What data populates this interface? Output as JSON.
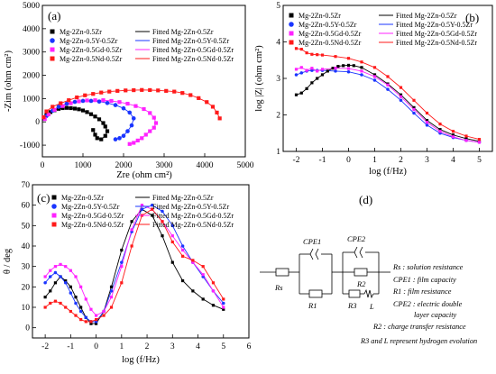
{
  "legend": {
    "series": [
      {
        "measured": "Mg-2Zn-0.5Zr",
        "fitted": "Fitted Mg-2Zn-0.5Zr",
        "color": "#000000",
        "marker": "square"
      },
      {
        "measured": "Mg-2Zn-0.5Y-0.5Zr",
        "fitted": "Fitted Mg-2Zn-0.5Y-0.5Zr",
        "color": "#1a35ff",
        "marker": "circle"
      },
      {
        "measured": "Mg-2Zn-0.5Gd-0.5Zr",
        "fitted": "Fitted Mg-2Zn-0.5Gd-0.5Zr",
        "color": "#ff22ff",
        "marker": "square"
      },
      {
        "measured": "Mg-2Zn-0.5Nd-0.5Zr",
        "fitted": "Fitted Mg-2Zn-0.5Nd-0.5Zr",
        "color": "#ff1a1a",
        "marker": "square"
      }
    ]
  },
  "chart_data": [
    {
      "panel": "(a)",
      "type": "scatter",
      "xlabel": "Zre (ohm cm²)",
      "ylabel": "-Zim (ohm cm²)",
      "xlim": [
        0,
        5000
      ],
      "ylim": [
        -1500,
        5000
      ],
      "xticks": [
        0,
        1000,
        2000,
        3000,
        4000,
        5000
      ],
      "yticks": [
        -1000,
        0,
        1000,
        2000,
        3000,
        4000,
        5000
      ],
      "series": [
        {
          "name": "Mg-2Zn-0.5Zr",
          "x": [
            40,
            100,
            200,
            300,
            400,
            500,
            600,
            700,
            800,
            900,
            1000,
            1100,
            1200,
            1300,
            1400,
            1500,
            1550,
            1600,
            1550,
            1450,
            1350,
            1300,
            1250
          ],
          "y": [
            130,
            300,
            420,
            500,
            560,
            590,
            600,
            590,
            570,
            540,
            490,
            420,
            330,
            230,
            110,
            -50,
            -200,
            -400,
            -600,
            -750,
            -700,
            -550,
            -350
          ]
        },
        {
          "name": "Mg-2Zn-0.5Y-0.5Zr",
          "x": [
            100,
            250,
            400,
            600,
            800,
            1000,
            1200,
            1400,
            1600,
            1800,
            2000,
            2150,
            2250,
            2200,
            2100,
            2000,
            1900,
            1800
          ],
          "y": [
            250,
            480,
            650,
            780,
            860,
            900,
            900,
            870,
            810,
            720,
            580,
            400,
            150,
            -150,
            -400,
            -600,
            -700,
            -750
          ]
        },
        {
          "name": "Mg-2Zn-0.5Gd-0.5Zr",
          "x": [
            60,
            150,
            300,
            500,
            700,
            900,
            1100,
            1300,
            1500,
            1700,
            1900,
            2100,
            2300,
            2500,
            2650,
            2750,
            2800,
            2750,
            2650,
            2550,
            2450,
            2350,
            2250,
            2150
          ],
          "y": [
            120,
            320,
            520,
            680,
            800,
            880,
            920,
            930,
            930,
            900,
            850,
            780,
            680,
            550,
            380,
            180,
            -50,
            -250,
            -400,
            -550,
            -700,
            -800,
            -900,
            -950
          ]
        },
        {
          "name": "Mg-2Zn-0.5Nd-0.5Zr",
          "x": [
            30,
            100,
            250,
            450,
            650,
            850,
            1050,
            1250,
            1450,
            1650,
            1850,
            2050,
            2250,
            2450,
            2650,
            2850,
            3050,
            3250,
            3450,
            3650,
            3850,
            4050,
            4200,
            4300,
            4370
          ],
          "y": [
            200,
            450,
            650,
            800,
            930,
            1050,
            1140,
            1200,
            1260,
            1300,
            1330,
            1350,
            1360,
            1370,
            1365,
            1350,
            1330,
            1300,
            1240,
            1150,
            1020,
            850,
            650,
            400,
            150
          ]
        }
      ]
    },
    {
      "panel": "(b)",
      "type": "scatter",
      "xlabel": "log (f/Hz)",
      "ylabel": "log |Z| (ohm cm²)",
      "xlim": [
        -2.5,
        5.5
      ],
      "ylim": [
        1,
        5
      ],
      "xticks": [
        -2,
        -1,
        0,
        1,
        2,
        3,
        4,
        5
      ],
      "yticks": [
        1,
        2,
        3,
        4,
        5
      ],
      "series": [
        {
          "name": "Mg-2Zn-0.5Zr",
          "x": [
            -2,
            -1.8,
            -1.6,
            -1.4,
            -1.2,
            -1,
            -0.8,
            -0.6,
            -0.4,
            -0.2,
            0,
            0.2,
            0.5,
            1,
            1.5,
            2,
            2.5,
            3,
            3.5,
            4,
            4.5,
            5
          ],
          "y": [
            2.55,
            2.6,
            2.72,
            2.88,
            3.0,
            3.1,
            3.2,
            3.28,
            3.33,
            3.35,
            3.36,
            3.35,
            3.3,
            3.1,
            2.85,
            2.55,
            2.2,
            1.85,
            1.6,
            1.45,
            1.35,
            1.28
          ]
        },
        {
          "name": "Mg-2Zn-0.5Y-0.5Zr",
          "x": [
            -2,
            -1.8,
            -1.6,
            -1.4,
            -1.2,
            -1,
            -0.5,
            0,
            0.5,
            1,
            1.5,
            2,
            2.5,
            3,
            3.5,
            4,
            4.5,
            5
          ],
          "y": [
            3.1,
            3.15,
            3.2,
            3.22,
            3.22,
            3.22,
            3.2,
            3.18,
            3.1,
            2.95,
            2.7,
            2.4,
            2.05,
            1.72,
            1.5,
            1.38,
            1.3,
            1.25
          ]
        },
        {
          "name": "Mg-2Zn-0.5Gd-0.5Zr",
          "x": [
            -2,
            -1.8,
            -1.6,
            -1.4,
            -1.2,
            -1,
            -0.5,
            0,
            0.5,
            1,
            1.5,
            2,
            2.5,
            3,
            3.5,
            4,
            4.5,
            5
          ],
          "y": [
            3.25,
            3.3,
            3.22,
            3.28,
            3.2,
            3.25,
            3.28,
            3.27,
            3.2,
            3.05,
            2.82,
            2.5,
            2.15,
            1.8,
            1.55,
            1.4,
            1.3,
            1.25
          ]
        },
        {
          "name": "Mg-2Zn-0.5Nd-0.5Zr",
          "x": [
            -2,
            -1.8,
            -1.6,
            -1.4,
            -1.2,
            -1,
            -0.5,
            0,
            0.5,
            1,
            1.5,
            2,
            2.5,
            3,
            3.5,
            4,
            4.5,
            5
          ],
          "y": [
            3.82,
            3.8,
            3.7,
            3.66,
            3.65,
            3.64,
            3.6,
            3.55,
            3.45,
            3.3,
            3.05,
            2.75,
            2.4,
            2.05,
            1.75,
            1.55,
            1.42,
            1.33
          ]
        }
      ]
    },
    {
      "panel": "(c)",
      "type": "scatter",
      "xlabel": "log (f/Hz)",
      "ylabel": "θ / deg",
      "xlim": [
        -2.5,
        6
      ],
      "ylim": [
        -5,
        70
      ],
      "xticks": [
        -2,
        -1,
        0,
        1,
        2,
        3,
        4,
        5,
        6
      ],
      "yticks": [
        0,
        10,
        20,
        30,
        40,
        50,
        60,
        70
      ],
      "series": [
        {
          "name": "Mg-2Zn-0.5Zr",
          "x": [
            -2,
            -1.8,
            -1.6,
            -1.4,
            -1.2,
            -1,
            -0.8,
            -0.6,
            -0.4,
            -0.2,
            0,
            0.3,
            0.6,
            1,
            1.4,
            1.8,
            2.2,
            2.6,
            3,
            3.4,
            3.8,
            4.2,
            4.6,
            5
          ],
          "y": [
            15,
            18,
            22,
            25,
            23,
            20,
            15,
            10,
            5,
            2,
            2,
            8,
            20,
            38,
            52,
            58,
            55,
            45,
            32,
            23,
            18,
            14,
            11,
            9
          ]
        },
        {
          "name": "Mg-2Zn-0.5Y-0.5Zr",
          "x": [
            -2,
            -1.8,
            -1.6,
            -1.4,
            -1.2,
            -1,
            -0.8,
            -0.6,
            -0.4,
            -0.2,
            0,
            0.3,
            0.6,
            1,
            1.4,
            1.8,
            2.2,
            2.6,
            3,
            3.4,
            3.8,
            4.2,
            4.6,
            5
          ],
          "y": [
            22,
            25,
            27,
            25,
            22,
            17,
            12,
            8,
            5,
            3,
            3,
            8,
            18,
            32,
            47,
            58,
            60,
            57,
            50,
            40,
            32,
            25,
            18,
            12
          ]
        },
        {
          "name": "Mg-2Zn-0.5Gd-0.5Zr",
          "x": [
            -2,
            -1.8,
            -1.6,
            -1.4,
            -1.2,
            -1,
            -0.8,
            -0.6,
            -0.4,
            -0.2,
            0,
            0.3,
            0.6,
            1,
            1.4,
            1.8,
            2.2,
            2.6,
            3,
            3.4,
            3.8,
            4.2,
            4.6,
            5
          ],
          "y": [
            25,
            28,
            30,
            31,
            30,
            28,
            25,
            20,
            14,
            9,
            6,
            8,
            15,
            30,
            48,
            60,
            58,
            52,
            45,
            38,
            32,
            26,
            18,
            10
          ]
        },
        {
          "name": "Mg-2Zn-0.5Nd-0.5Zr",
          "x": [
            -2,
            -1.8,
            -1.6,
            -1.4,
            -1.2,
            -1,
            -0.8,
            -0.6,
            -0.4,
            -0.2,
            0,
            0.3,
            0.6,
            1,
            1.4,
            1.8,
            2.2,
            2.6,
            3,
            3.4,
            3.8,
            4.2,
            4.6,
            5
          ],
          "y": [
            10,
            12,
            13,
            12,
            10,
            8,
            6,
            4,
            3,
            3,
            4,
            6,
            10,
            22,
            40,
            55,
            58,
            52,
            42,
            35,
            33,
            30,
            22,
            14
          ]
        }
      ]
    }
  ],
  "circuit": {
    "panel_label": "(d)",
    "elements": {
      "rs": "Rs",
      "cpe1": "CPE1",
      "r1": "R1",
      "cpe2": "CPE2",
      "r2": "R2",
      "r3": "R3",
      "l": "L"
    },
    "legend_lines": [
      "Rs : solution resistance",
      "CPE1 : film capacity",
      "R1 : film resistance",
      "CPE2 : electric double",
      "layer capacity",
      "R2 : charge transfer resistance",
      "R3 and L represent hydrogen evolution"
    ]
  }
}
